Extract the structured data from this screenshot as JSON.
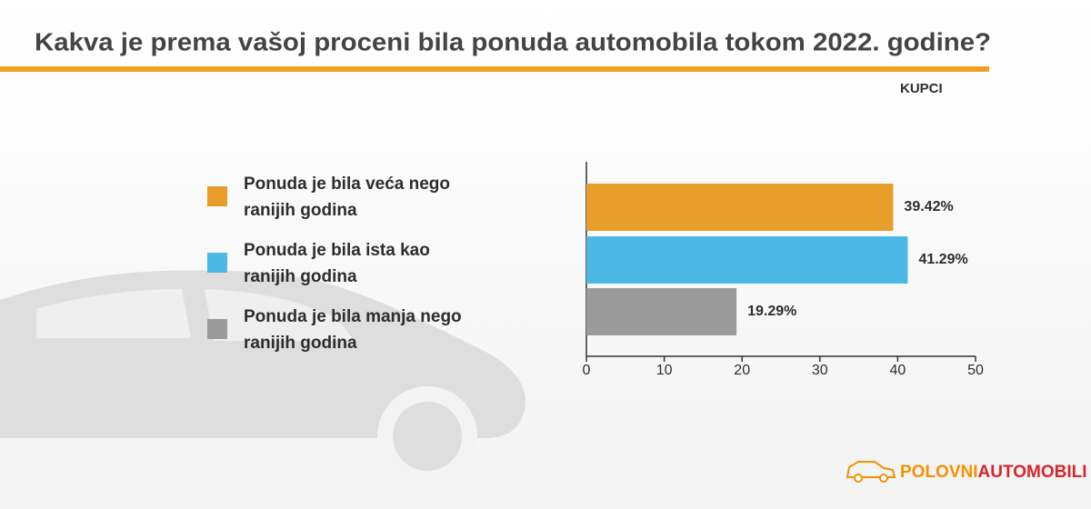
{
  "chart_data": {
    "type": "bar",
    "orientation": "horizontal",
    "title": "Kakva je prema vašoj proceni bila ponuda automobila tokom 2022. godine?",
    "subtitle": "KUPCI",
    "categories": [
      "Ponuda je bila veća nego ranijih godina",
      "Ponuda je bila ista kao ranijih godina",
      "Ponuda je bila manja nego ranijih godina"
    ],
    "values": [
      39.42,
      41.29,
      19.29
    ],
    "value_labels": [
      "39.42%",
      "41.29%",
      "19.29%"
    ],
    "colors": [
      "#e99d2a",
      "#4cb8e6",
      "#9b9b9b"
    ],
    "xlim": [
      0,
      50
    ],
    "xticks": [
      0,
      10,
      20,
      30,
      40,
      50
    ],
    "grid": false,
    "legend": "left",
    "logo": [
      "POLOVNI",
      "AUTOMOBILI"
    ]
  }
}
